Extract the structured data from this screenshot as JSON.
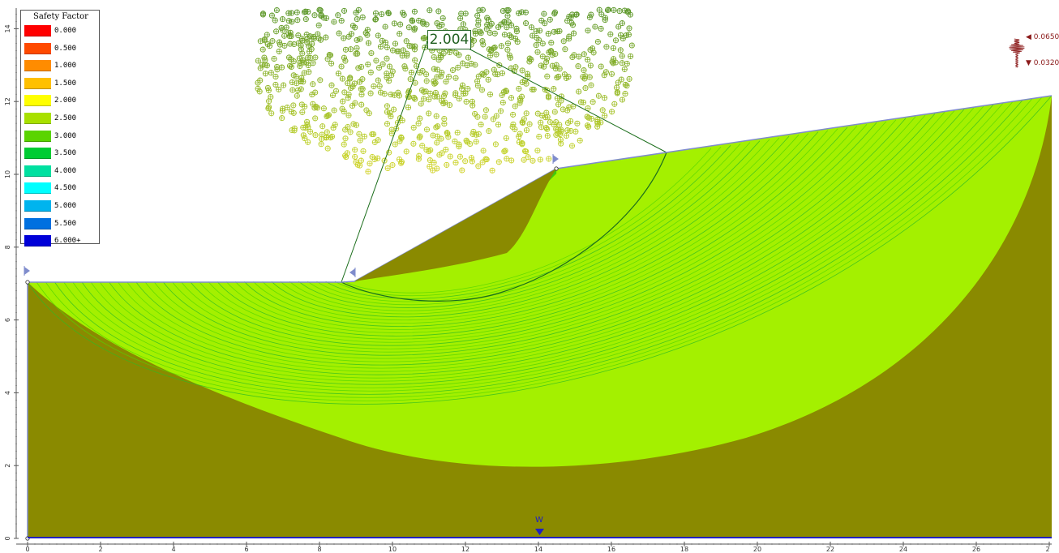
{
  "legend": {
    "title": "Safety Factor",
    "entries": [
      {
        "value": "0.000",
        "color": "#ff0000"
      },
      {
        "value": "0.500",
        "color": "#ff4a00"
      },
      {
        "value": "1.000",
        "color": "#ff8c00"
      },
      {
        "value": "1.500",
        "color": "#ffc000"
      },
      {
        "value": "2.000",
        "color": "#ffff00"
      },
      {
        "value": "2.500",
        "color": "#a8e000"
      },
      {
        "value": "3.000",
        "color": "#5ad400"
      },
      {
        "value": "3.500",
        "color": "#00cc33"
      },
      {
        "value": "4.000",
        "color": "#00e0a0"
      },
      {
        "value": "4.500",
        "color": "#00ffff"
      },
      {
        "value": "5.000",
        "color": "#00b4ee"
      },
      {
        "value": "5.500",
        "color": "#0070e0"
      },
      {
        "value": "6.000+",
        "color": "#0000d8"
      }
    ]
  },
  "critical_fs": "2.004",
  "seismic": {
    "max_label": "0.0650",
    "min_label": "0.0320"
  },
  "water_label": "W",
  "axes": {
    "x_ticks": [
      "0",
      "2",
      "4",
      "6",
      "8",
      "10",
      "12",
      "14",
      "16",
      "18",
      "20",
      "22",
      "24",
      "26",
      "2"
    ],
    "y_ticks": [
      "0",
      "2",
      "4",
      "6",
      "8",
      "10",
      "12",
      "14"
    ]
  },
  "colors": {
    "soil": "#8a8a00",
    "slip_fill": "#a4f000",
    "slip_line": "#54d600",
    "slip_line_dark": "#30bb20",
    "critical_circle": "#1c6e1c",
    "boundary": "#7f8ccc",
    "water": "#2020c0",
    "centers": "#55b820"
  }
}
